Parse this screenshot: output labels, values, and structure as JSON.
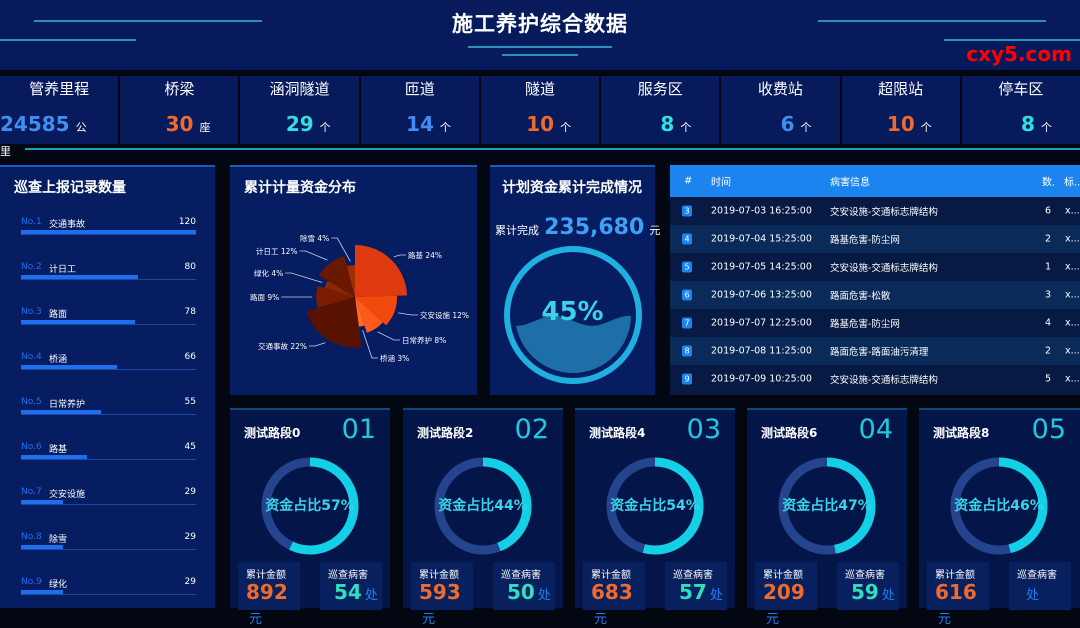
{
  "header": {
    "title": "施工养护综合数据"
  },
  "stats": [
    {
      "label": "管养里程",
      "value": "24585",
      "unit": "公里",
      "color": "#3f8ef0"
    },
    {
      "label": "桥梁",
      "value": "30",
      "unit": "座",
      "color": "#ef6a2c"
    },
    {
      "label": "涵洞隧道",
      "value": "29",
      "unit": "个",
      "color": "#2ee0e0"
    },
    {
      "label": "匝道",
      "value": "14",
      "unit": "个",
      "color": "#3f8ef0"
    },
    {
      "label": "隧道",
      "value": "10",
      "unit": "个",
      "color": "#ef6a2c"
    },
    {
      "label": "服务区",
      "value": "8",
      "unit": "个",
      "color": "#2ee0e0"
    },
    {
      "label": "收费站",
      "value": "6",
      "unit": "个",
      "color": "#3f8ef0"
    },
    {
      "label": "超限站",
      "value": "10",
      "unit": "个",
      "color": "#ef6a2c"
    },
    {
      "label": "停车区",
      "value": "8",
      "unit": "个",
      "color": "#2ee0e0"
    }
  ],
  "ranking": {
    "title": "巡查上报记录数量",
    "max": 120,
    "items": [
      {
        "no": "No.1",
        "name": "交通事故",
        "count": 120
      },
      {
        "no": "No.2",
        "name": "计日工",
        "count": 80
      },
      {
        "no": "No.3",
        "name": "路面",
        "count": 78
      },
      {
        "no": "No.4",
        "name": "桥涵",
        "count": 66
      },
      {
        "no": "No.5",
        "name": "日常养护",
        "count": 55
      },
      {
        "no": "No.6",
        "name": "路基",
        "count": 45
      },
      {
        "no": "No.7",
        "name": "交安设施",
        "count": 29
      },
      {
        "no": "No.8",
        "name": "除雪",
        "count": 29
      },
      {
        "no": "No.9",
        "name": "绿化",
        "count": 29
      }
    ]
  },
  "pie": {
    "title": "累计计量资金分布",
    "chart_data": {
      "type": "pie",
      "variant": "rose",
      "slices": [
        {
          "name": "路基",
          "value": 24,
          "label": "路基 24%"
        },
        {
          "name": "交安设施",
          "value": 12,
          "label": "交安设施 12%"
        },
        {
          "name": "日常养护",
          "value": 8,
          "label": "日常养护 8%"
        },
        {
          "name": "桥涵",
          "value": 3,
          "label": "桥涵 3%"
        },
        {
          "name": "交通事故",
          "value": 22,
          "label": "交通事故 22%"
        },
        {
          "name": "路面",
          "value": 9,
          "label": "路面 9%"
        },
        {
          "name": "绿化",
          "value": 4,
          "label": "绿化 4%"
        },
        {
          "name": "计日工",
          "value": 12,
          "label": "计日工 12%"
        },
        {
          "name": "除雪",
          "value": 4,
          "label": "除雪 4%"
        }
      ]
    }
  },
  "gauge": {
    "title": "计划资金累计完成情况",
    "caption": "累计完成",
    "amount": "235,680",
    "unit": "元",
    "percent": 45,
    "percent_label": "45%"
  },
  "table": {
    "headers": [
      "#",
      "时间",
      "病害信息",
      "数.",
      "标.."
    ],
    "rows": [
      {
        "idx": "3",
        "time": "2019-07-03 16:25:00",
        "info": "交安设施-交通标志牌结构",
        "num": "6",
        "mark": "x..."
      },
      {
        "idx": "4",
        "time": "2019-07-04 15:25:00",
        "info": "路基危害-防尘网",
        "num": "2",
        "mark": "x..."
      },
      {
        "idx": "5",
        "time": "2019-07-05 14:25:00",
        "info": "交安设施-交通标志牌结构",
        "num": "1",
        "mark": "x..."
      },
      {
        "idx": "6",
        "time": "2019-07-06 13:25:00",
        "info": "路面危害-松散",
        "num": "3",
        "mark": "x..."
      },
      {
        "idx": "7",
        "time": "2019-07-07 12:25:00",
        "info": "路基危害-防尘网",
        "num": "4",
        "mark": "x..."
      },
      {
        "idx": "8",
        "time": "2019-07-08 11:25:00",
        "info": "路面危害-路面油污清理",
        "num": "2",
        "mark": "x..."
      },
      {
        "idx": "9",
        "time": "2019-07-09 10:25:00",
        "info": "交安设施-交通标志牌结构",
        "num": "5",
        "mark": "x..."
      }
    ]
  },
  "cards": [
    {
      "name": "测试路段0",
      "num": "01",
      "percent": 57,
      "ratio_label": "资金占比57%",
      "amount_label": "累计金额",
      "amount": "892",
      "amount_unit": "元",
      "issues_label": "巡查病害",
      "issues": "54",
      "issues_unit": "处"
    },
    {
      "name": "测试路段2",
      "num": "02",
      "percent": 44,
      "ratio_label": "资金占比44%",
      "amount_label": "累计金额",
      "amount": "593",
      "amount_unit": "元",
      "issues_label": "巡查病害",
      "issues": "50",
      "issues_unit": "处"
    },
    {
      "name": "测试路段4",
      "num": "03",
      "percent": 54,
      "ratio_label": "资金占比54%",
      "amount_label": "累计金额",
      "amount": "683",
      "amount_unit": "元",
      "issues_label": "巡查病害",
      "issues": "57",
      "issues_unit": "处"
    },
    {
      "name": "测试路段6",
      "num": "04",
      "percent": 47,
      "ratio_label": "资金占比47%",
      "amount_label": "累计金额",
      "amount": "209",
      "amount_unit": "元",
      "issues_label": "巡查病害",
      "issues": "59",
      "issues_unit": "处"
    },
    {
      "name": "测试路段8",
      "num": "05",
      "percent": 46,
      "ratio_label": "资金占比46%",
      "amount_label": "累计金额",
      "amount": "616",
      "amount_unit": "元",
      "issues_label": "巡查病害",
      "issues": "",
      "issues_unit": "处"
    }
  ],
  "watermark": "cxy5.com"
}
